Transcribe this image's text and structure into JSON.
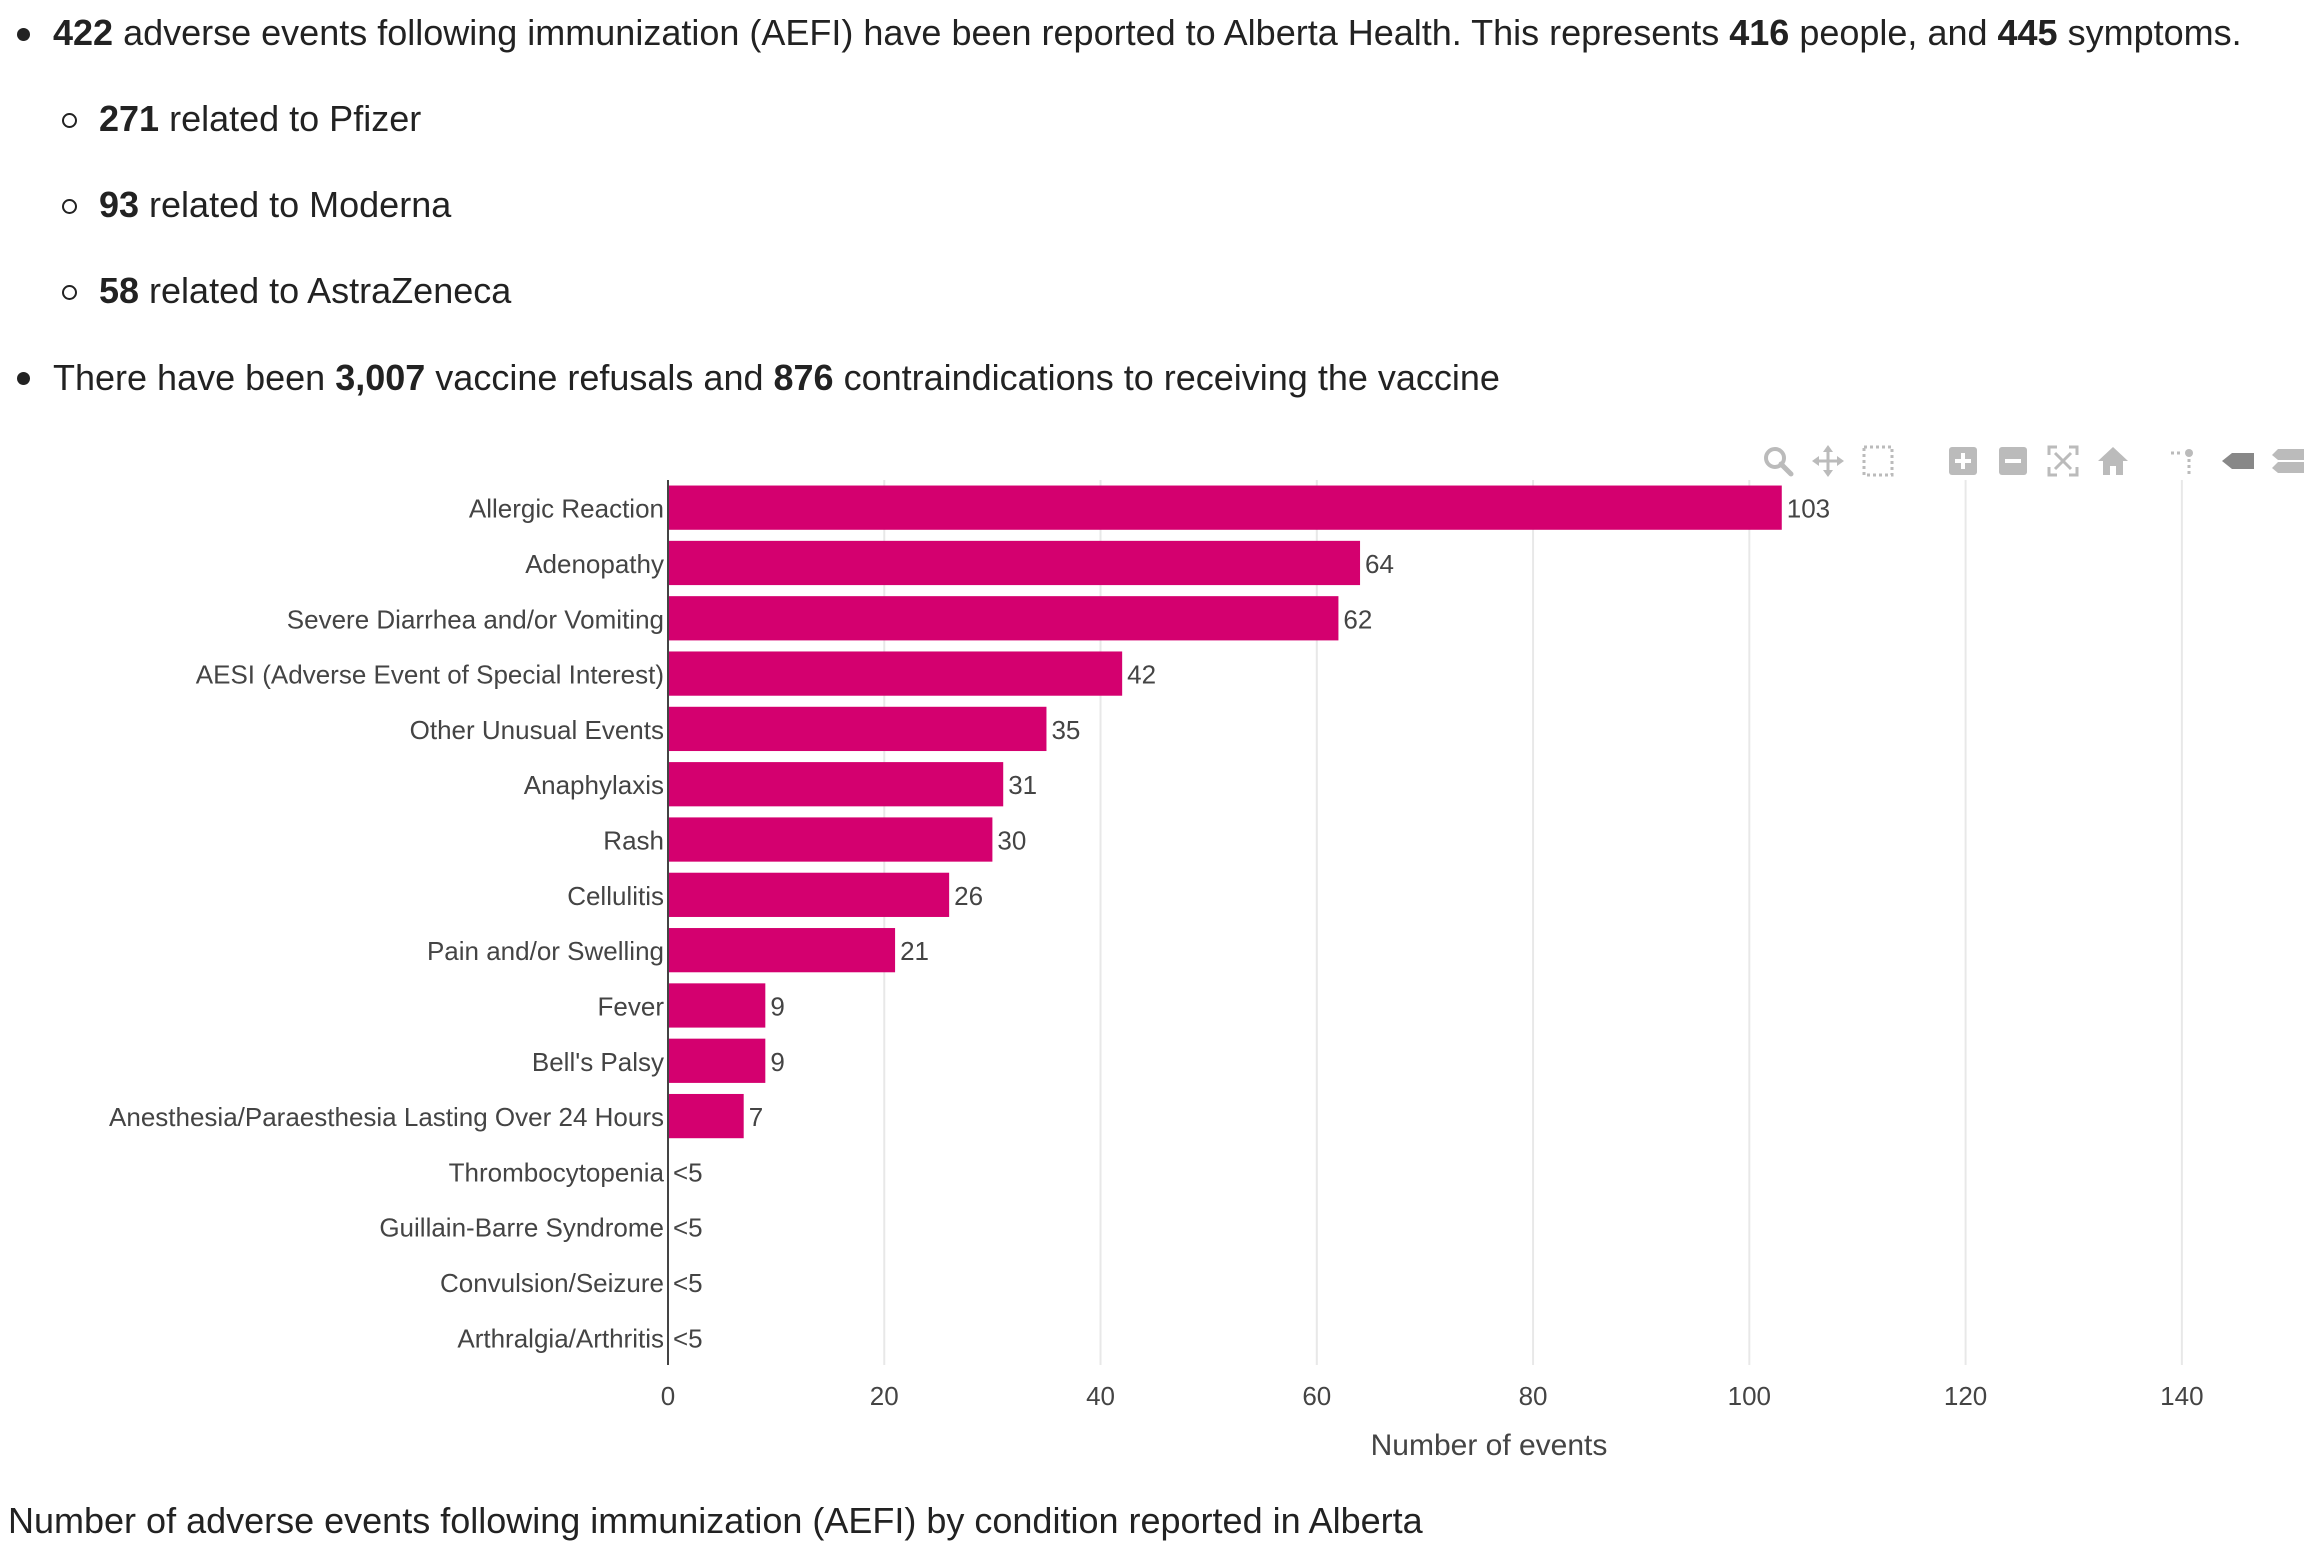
{
  "summary": {
    "line1": {
      "n1": "422",
      "t1": " adverse events following immunization (AEFI) have been reported to Alberta Health. This represents ",
      "n2": "416",
      "t2": " people, and ",
      "n3": "445",
      "t3": " symptoms."
    },
    "sub": [
      {
        "n": "271",
        "t": " related to Pfizer"
      },
      {
        "n": "93",
        "t": " related to Moderna"
      },
      {
        "n": "58",
        "t": " related to AstraZeneca"
      }
    ],
    "line2": {
      "t0": "There have been ",
      "n1": "3,007",
      "t1": " vaccine refusals and ",
      "n2": "876",
      "t2": " contraindications to receiving the vaccine"
    }
  },
  "caption": "Number of adverse events following immunization (AEFI) by condition reported in Alberta",
  "toolbar": {
    "icons": [
      "zoom-icon",
      "pan-icon",
      "box-select-icon",
      "zoom-in-icon",
      "zoom-out-icon",
      "autoscale-icon",
      "reset-axes-icon",
      "spike-lines-icon",
      "hover-closest-icon",
      "hover-compare-icon"
    ]
  },
  "colors": {
    "bar": "#d4006f",
    "grid": "#e8e8e8",
    "text": "#444444"
  },
  "chart_data": {
    "type": "bar",
    "orientation": "horizontal",
    "categories": [
      "Allergic Reaction",
      "Adenopathy",
      "Severe Diarrhea and/or Vomiting",
      "AESI (Adverse Event of Special Interest)",
      "Other Unusual Events",
      "Anaphylaxis",
      "Rash",
      "Cellulitis",
      "Pain and/or Swelling",
      "Fever",
      "Bell's Palsy",
      "Anesthesia/Paraesthesia Lasting Over 24 Hours",
      "Thrombocytopenia",
      "Guillain-Barre Syndrome",
      "Convulsion/Seizure",
      "Arthralgia/Arthritis"
    ],
    "values": [
      103,
      64,
      62,
      42,
      35,
      31,
      30,
      26,
      21,
      9,
      9,
      7,
      0,
      0,
      0,
      0
    ],
    "data_labels": [
      "103",
      "64",
      "62",
      "42",
      "35",
      "31",
      "30",
      "26",
      "21",
      "9",
      "9",
      "7",
      "<5",
      "<5",
      "<5",
      "<5"
    ],
    "xlabel": "Number of events",
    "ylabel": "",
    "xlim": [
      0,
      150
    ],
    "xticks": [
      0,
      20,
      40,
      60,
      80,
      100,
      120,
      140
    ],
    "grid": true
  }
}
